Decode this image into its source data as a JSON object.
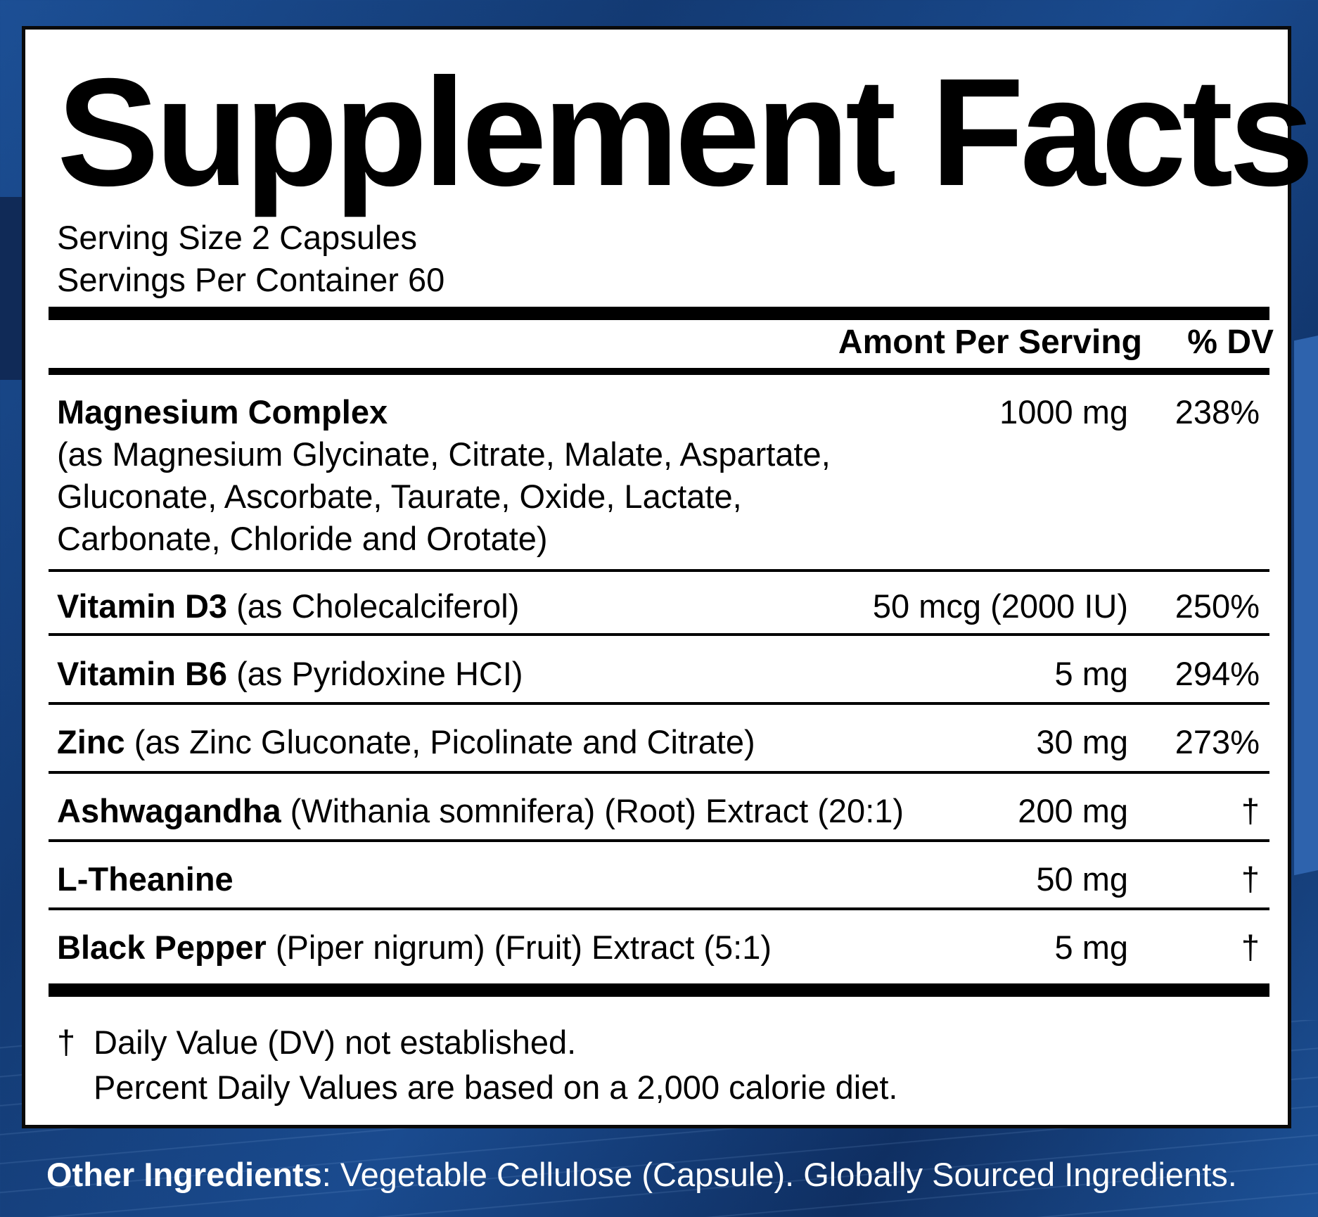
{
  "title": "Supplement Facts",
  "serving_size": "Serving Size 2 Capsules",
  "servings_per_container": "Servings Per Container 60",
  "header": {
    "amount": "Amont Per Serving",
    "dv": "% DV"
  },
  "rows": [
    {
      "name": "Magnesium Complex",
      "detail": "",
      "desc": "(as Magnesium Glycinate, Citrate, Malate, Aspartate, Gluconate, Ascorbate, Taurate, Oxide, Lactate, Carbonate, Chloride and Orotate)",
      "amount": "1000 mg",
      "dv": "238%"
    },
    {
      "name": "Vitamin D3",
      "detail": "(as Cholecalciferol)",
      "amount": "50 mcg (2000 IU)",
      "dv": "250%"
    },
    {
      "name": "Vitamin B6",
      "detail": "(as Pyridoxine HCI)",
      "amount": "5 mg",
      "dv": "294%"
    },
    {
      "name": "Zinc",
      "detail": "(as Zinc Gluconate, Picolinate and Citrate)",
      "amount": "30 mg",
      "dv": "273%"
    },
    {
      "name": "Ashwagandha",
      "detail": "(Withania somnifera) (Root) Extract (20:1)",
      "amount": "200 mg",
      "dv": "†"
    },
    {
      "name": "L-Theanine",
      "detail": "",
      "amount": "50 mg",
      "dv": "†"
    },
    {
      "name": "Black Pepper",
      "detail": "(Piper nigrum) (Fruit) Extract (5:1)",
      "amount": "5 mg",
      "dv": "†"
    }
  ],
  "footnote": {
    "dagger": "†",
    "line1": "Daily Value (DV) not established.",
    "line2": "Percent Daily Values are based on a 2,000 calorie diet."
  },
  "other_ingredients": {
    "label": "Other Ingredients",
    "text": ": Vegetable Cellulose (Capsule).  Globally Sourced Ingredients."
  },
  "colors": {
    "background": "#1a4b8f",
    "panel": "#ffffff",
    "text": "#000000"
  }
}
